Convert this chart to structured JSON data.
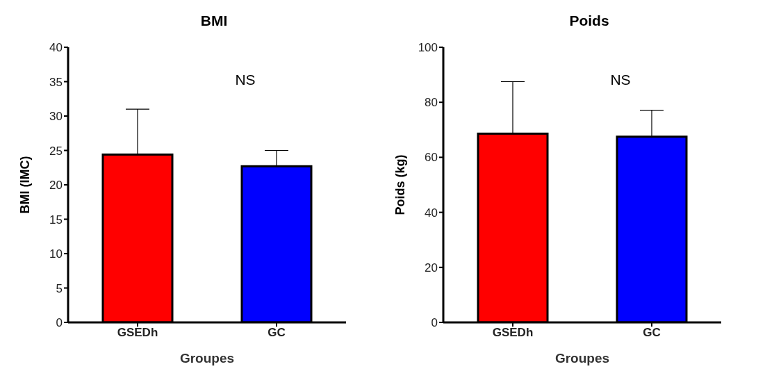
{
  "chart_data": [
    {
      "type": "bar",
      "title": "BMI",
      "xlabel": "Groupes",
      "ylabel": "BMI (IMC)",
      "categories": [
        "GSEDh",
        "GC"
      ],
      "values": [
        24.4,
        22.7
      ],
      "colors": [
        "#ff0000",
        "#0000ff"
      ],
      "errors": [
        [
          24.4,
          31.0
        ],
        [
          22.7,
          25.0
        ]
      ],
      "ylim": [
        0,
        40
      ],
      "yticks": [
        0,
        5,
        10,
        15,
        20,
        25,
        30,
        35,
        40
      ],
      "annotations": [
        "NS"
      ],
      "grid": false,
      "legend": false
    },
    {
      "type": "bar",
      "title": "Poids",
      "xlabel": "Groupes",
      "ylabel": "Poids (kg)",
      "categories": [
        "GSEDh",
        "GC"
      ],
      "values": [
        68.6,
        67.5
      ],
      "colors": [
        "#ff0000",
        "#0000ff"
      ],
      "errors": [
        [
          68.6,
          87.5
        ],
        [
          67.5,
          77.1
        ]
      ],
      "ylim": [
        0,
        100
      ],
      "yticks": [
        0,
        20,
        40,
        60,
        80,
        100
      ],
      "annotations": [
        "NS"
      ],
      "grid": false,
      "legend": false
    }
  ]
}
